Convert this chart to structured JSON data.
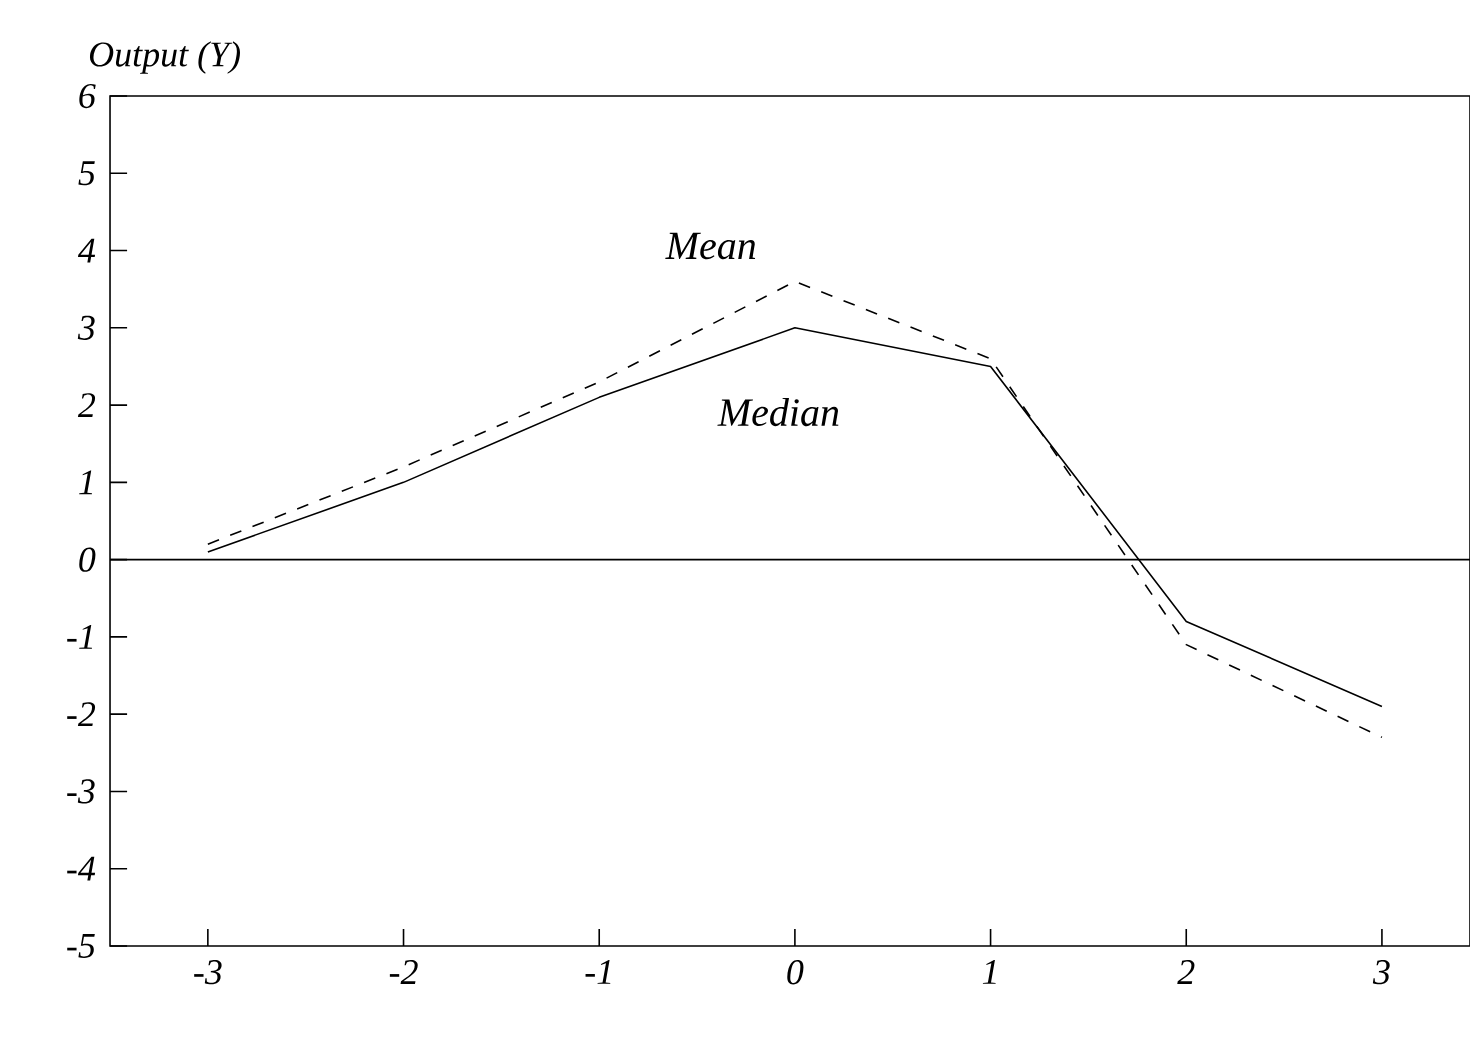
{
  "chart_data": {
    "type": "line",
    "ylabel": "Output (Y)",
    "x": [
      -3,
      -2,
      -1,
      0,
      1,
      2,
      3
    ],
    "series": [
      {
        "name": "Median",
        "color": "#000000",
        "line_style": "solid",
        "values": [
          0.1,
          1.0,
          2.1,
          3.0,
          2.5,
          -0.8,
          -1.9
        ]
      },
      {
        "name": "Mean",
        "color": "#000000",
        "line_style": "dashed",
        "values": [
          0.2,
          1.2,
          2.3,
          3.6,
          2.6,
          -1.1,
          -2.3
        ]
      }
    ],
    "xlim": [
      -3.5,
      3.45
    ],
    "ylim": [
      -5,
      6
    ],
    "xticks": [
      -3,
      -2,
      -1,
      0,
      1,
      2,
      3
    ],
    "yticks": [
      -5,
      -4,
      -3,
      -2,
      -1,
      0,
      1,
      2,
      3,
      4,
      5,
      6
    ],
    "ref_lines": [
      {
        "axis": "y",
        "value": 0
      }
    ],
    "marker": "none"
  }
}
